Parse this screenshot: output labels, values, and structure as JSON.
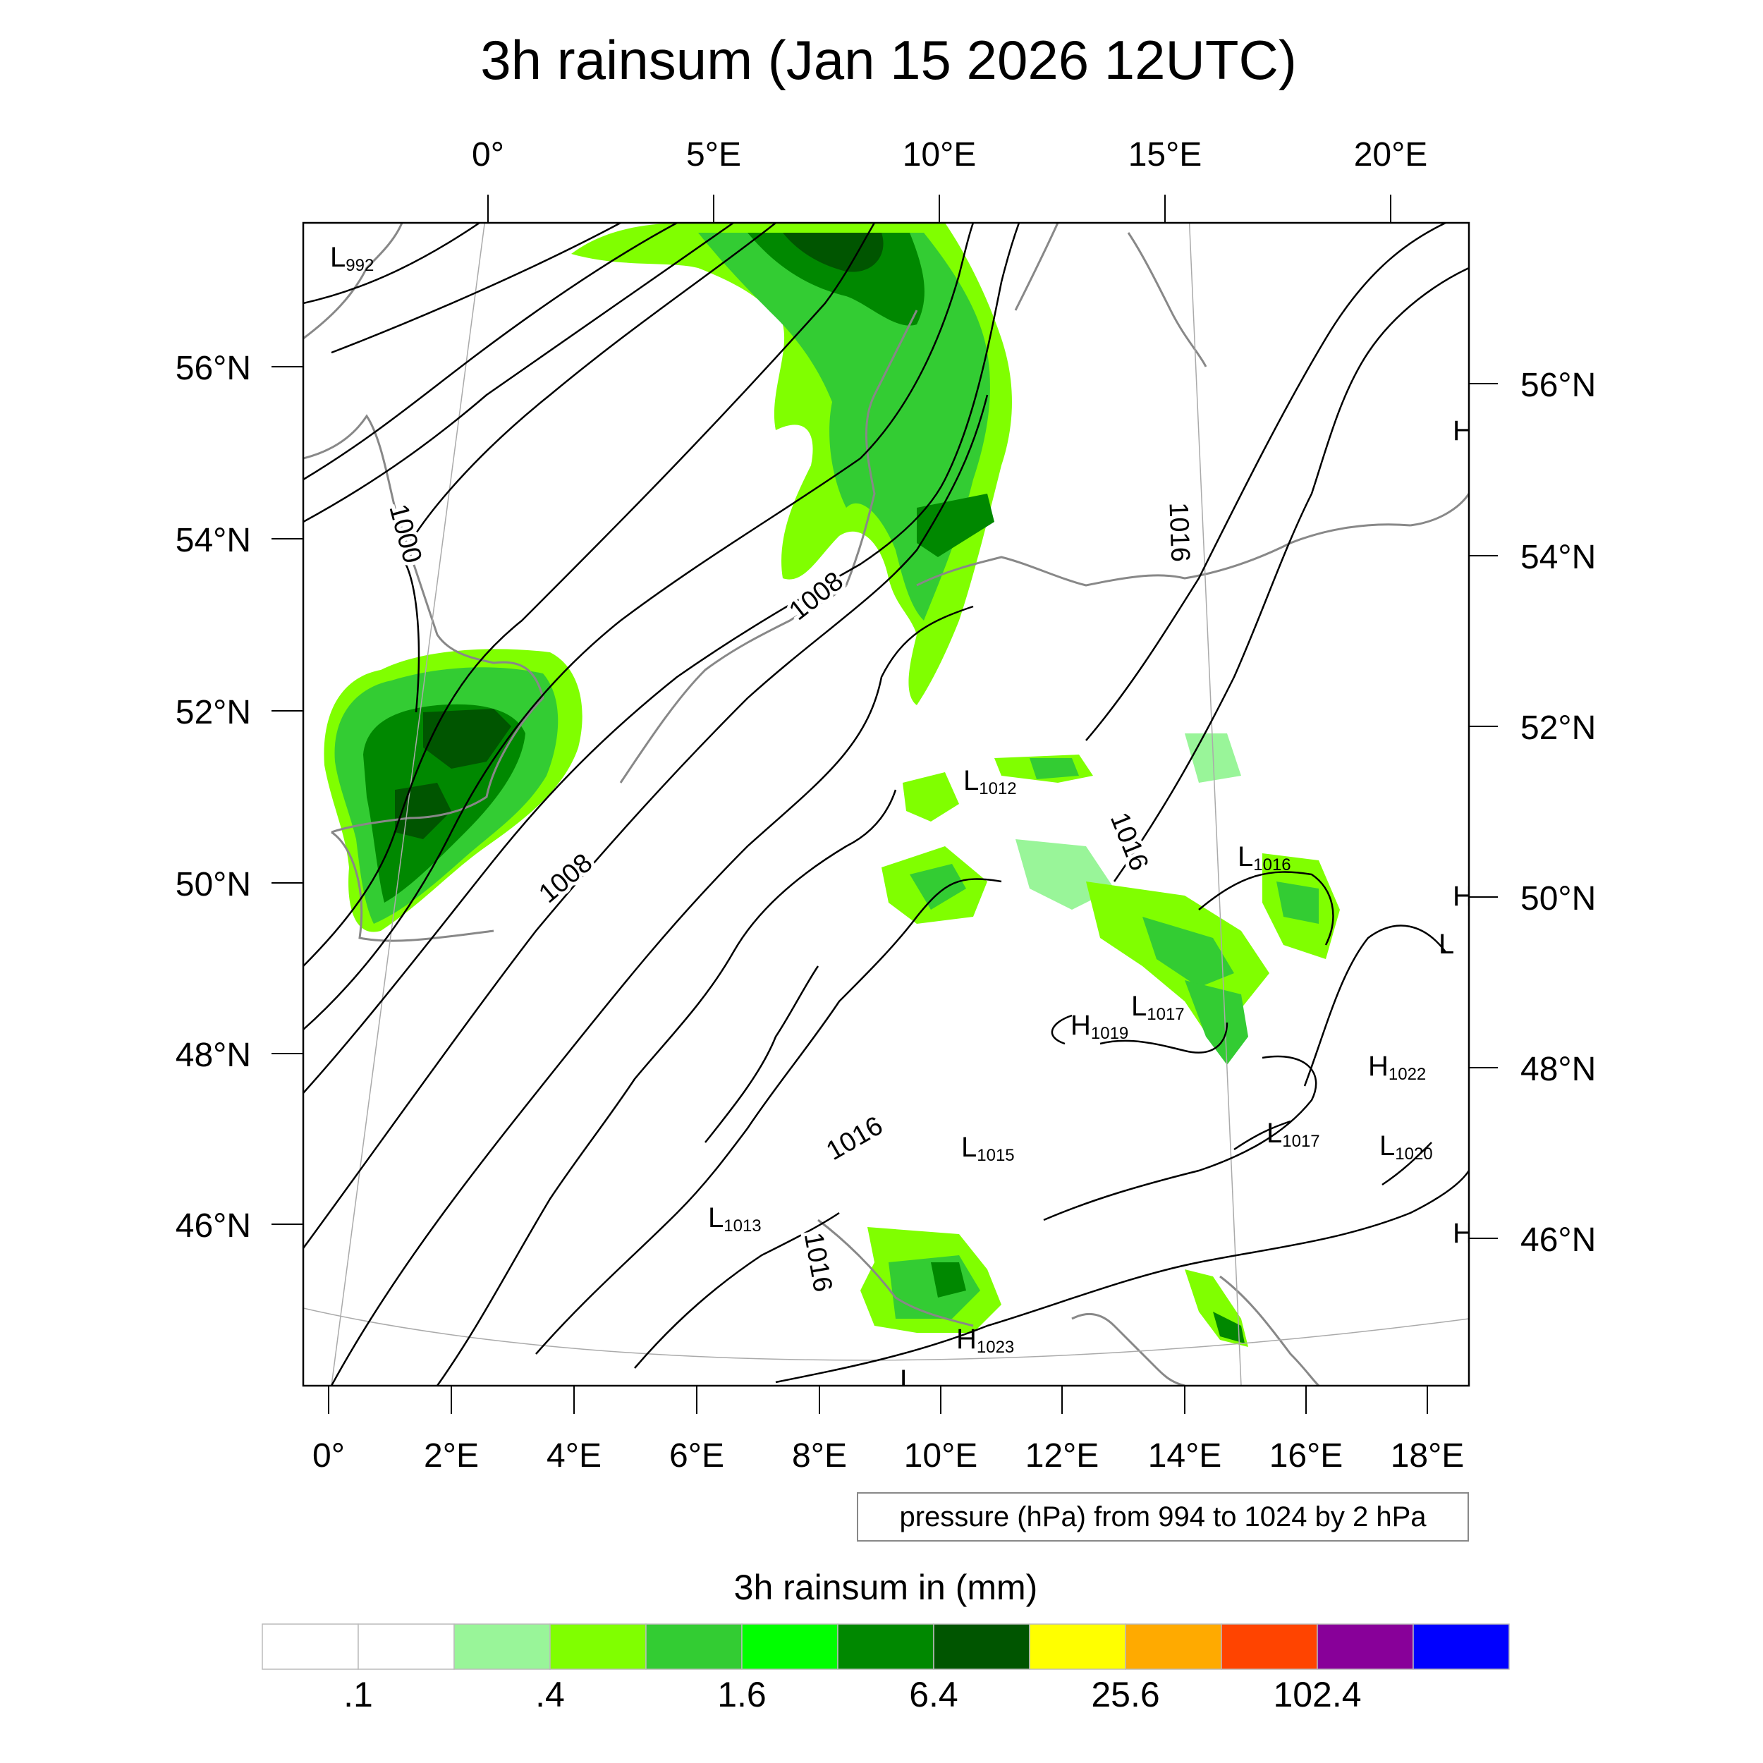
{
  "title": "3h rainsum (Jan 15 2026 12UTC)",
  "top_lon_labels": [
    "0°",
    "5°E",
    "10°E",
    "15°E",
    "20°E"
  ],
  "bottom_lon_labels": [
    "0°",
    "2°E",
    "4°E",
    "6°E",
    "8°E",
    "10°E",
    "12°E",
    "14°E",
    "16°E",
    "18°E"
  ],
  "left_lat_labels": [
    "56°N",
    "54°N",
    "52°N",
    "50°N",
    "48°N",
    "46°N"
  ],
  "right_lat_labels": [
    "56°N",
    "54°N",
    "52°N",
    "50°N",
    "48°N",
    "46°N"
  ],
  "isobar_labels": [
    "1000",
    "1008",
    "1008",
    "1016",
    "1016",
    "1016",
    "1016"
  ],
  "pressure_centers": [
    {
      "type": "L",
      "value": "992"
    },
    {
      "type": "L",
      "value": "1012"
    },
    {
      "type": "L",
      "value": "1016"
    },
    {
      "type": "L",
      "value": "1017"
    },
    {
      "type": "H",
      "value": "1019"
    },
    {
      "type": "H",
      "value": "1022"
    },
    {
      "type": "L",
      "value": "1017"
    },
    {
      "type": "L",
      "value": "1020"
    },
    {
      "type": "L",
      "value": "1015"
    },
    {
      "type": "L",
      "value": "1013"
    },
    {
      "type": "H",
      "value": "1023"
    },
    {
      "type": "H",
      "value": ""
    },
    {
      "type": "H",
      "value": ""
    },
    {
      "type": "L",
      "value": ""
    },
    {
      "type": "H",
      "value": ""
    },
    {
      "type": "L",
      "value": ""
    }
  ],
  "pressure_note": "pressure (hPa) from 994 to 1024 by 2 hPa",
  "colorbar": {
    "title": "3h rainsum in (mm)",
    "colors": [
      "#ffffff",
      "#ffffff",
      "#99f599",
      "#80ff00",
      "#33cc33",
      "#00ff00",
      "#008800",
      "#005500",
      "#ffff00",
      "#ffaa00",
      "#ff4400",
      "#880099",
      "#0000ff"
    ],
    "labels": [
      ".1",
      ".4",
      "1.6",
      "6.4",
      "25.6",
      "102.4"
    ]
  }
}
